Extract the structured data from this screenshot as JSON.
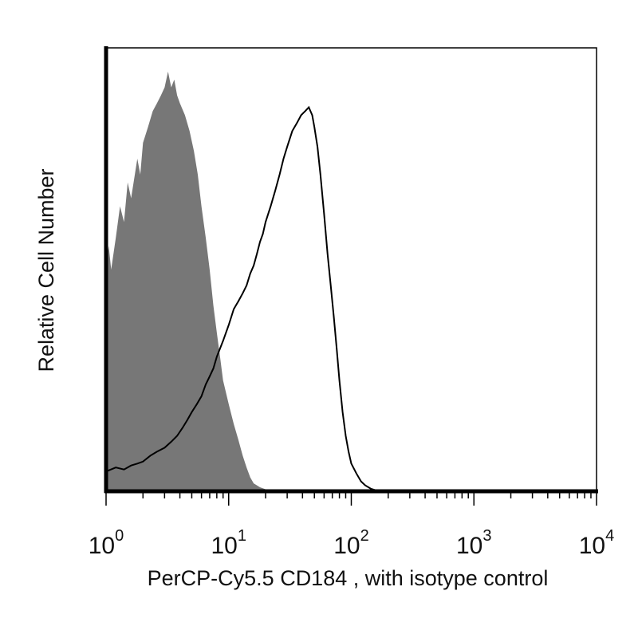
{
  "chart_data": {
    "type": "histogram",
    "xlabel": "PerCP-Cy5.5 CD184 , with isotype control",
    "ylabel": "Relative Cell Number",
    "x_scale": "log",
    "xlim": [
      1,
      10000
    ],
    "ylim": [
      0,
      1.12
    ],
    "x_ticks": [
      {
        "base": "10",
        "exp": "0",
        "value": 1
      },
      {
        "base": "10",
        "exp": "1",
        "value": 10
      },
      {
        "base": "10",
        "exp": "2",
        "value": 100
      },
      {
        "base": "10",
        "exp": "3",
        "value": 1000
      },
      {
        "base": "10",
        "exp": "4",
        "value": 10000
      }
    ],
    "grid": false,
    "legend": "none",
    "series": [
      {
        "style": "filled",
        "color": "#777777",
        "points": [
          [
            1.0,
            0.57
          ],
          [
            1.05,
            0.62
          ],
          [
            1.1,
            0.56
          ],
          [
            1.2,
            0.64
          ],
          [
            1.3,
            0.72
          ],
          [
            1.4,
            0.68
          ],
          [
            1.5,
            0.78
          ],
          [
            1.6,
            0.74
          ],
          [
            1.8,
            0.84
          ],
          [
            1.9,
            0.8
          ],
          [
            2.0,
            0.88
          ],
          [
            2.2,
            0.92
          ],
          [
            2.4,
            0.96
          ],
          [
            2.6,
            0.98
          ],
          [
            2.8,
            1.0
          ],
          [
            3.0,
            1.02
          ],
          [
            3.2,
            1.06
          ],
          [
            3.4,
            1.02
          ],
          [
            3.6,
            1.04
          ],
          [
            3.8,
            1.0
          ],
          [
            4.0,
            0.98
          ],
          [
            4.4,
            0.95
          ],
          [
            4.8,
            0.91
          ],
          [
            5.2,
            0.86
          ],
          [
            5.6,
            0.8
          ],
          [
            6.0,
            0.72
          ],
          [
            6.5,
            0.64
          ],
          [
            7.0,
            0.56
          ],
          [
            7.5,
            0.47
          ],
          [
            8.0,
            0.4
          ],
          [
            8.5,
            0.34
          ],
          [
            9.0,
            0.28
          ],
          [
            10.0,
            0.22
          ],
          [
            11.0,
            0.17
          ],
          [
            12.0,
            0.13
          ],
          [
            13.0,
            0.09
          ],
          [
            14.0,
            0.06
          ],
          [
            15.0,
            0.035
          ],
          [
            16.0,
            0.02
          ],
          [
            18.0,
            0.01
          ],
          [
            20.0,
            0.005
          ],
          [
            25.0,
            0.0
          ]
        ]
      },
      {
        "style": "outline",
        "color": "#000000",
        "points": [
          [
            1.0,
            0.05
          ],
          [
            1.2,
            0.06
          ],
          [
            1.4,
            0.055
          ],
          [
            1.6,
            0.065
          ],
          [
            1.8,
            0.07
          ],
          [
            2.0,
            0.075
          ],
          [
            2.3,
            0.09
          ],
          [
            2.6,
            0.1
          ],
          [
            3.0,
            0.11
          ],
          [
            3.4,
            0.125
          ],
          [
            3.8,
            0.14
          ],
          [
            4.2,
            0.16
          ],
          [
            4.6,
            0.18
          ],
          [
            5.0,
            0.2
          ],
          [
            5.5,
            0.22
          ],
          [
            6.0,
            0.24
          ],
          [
            6.5,
            0.27
          ],
          [
            7.0,
            0.29
          ],
          [
            7.5,
            0.31
          ],
          [
            8.0,
            0.34
          ],
          [
            9.0,
            0.38
          ],
          [
            10.0,
            0.42
          ],
          [
            11.0,
            0.46
          ],
          [
            12.0,
            0.48
          ],
          [
            13.0,
            0.5
          ],
          [
            14.0,
            0.52
          ],
          [
            15.0,
            0.55
          ],
          [
            16.0,
            0.57
          ],
          [
            17.0,
            0.6
          ],
          [
            18.0,
            0.63
          ],
          [
            19.0,
            0.65
          ],
          [
            20.0,
            0.68
          ],
          [
            22.0,
            0.72
          ],
          [
            24.0,
            0.76
          ],
          [
            26.0,
            0.8
          ],
          [
            28.0,
            0.84
          ],
          [
            30.0,
            0.87
          ],
          [
            33.0,
            0.91
          ],
          [
            36.0,
            0.93
          ],
          [
            39.0,
            0.95
          ],
          [
            42.0,
            0.96
          ],
          [
            45.0,
            0.97
          ],
          [
            48.0,
            0.95
          ],
          [
            50.0,
            0.92
          ],
          [
            53.0,
            0.87
          ],
          [
            56.0,
            0.8
          ],
          [
            60.0,
            0.7
          ],
          [
            64.0,
            0.6
          ],
          [
            68.0,
            0.52
          ],
          [
            72.0,
            0.44
          ],
          [
            76.0,
            0.36
          ],
          [
            80.0,
            0.28
          ],
          [
            85.0,
            0.2
          ],
          [
            90.0,
            0.14
          ],
          [
            95.0,
            0.1
          ],
          [
            100.0,
            0.07
          ],
          [
            110.0,
            0.045
          ],
          [
            120.0,
            0.025
          ],
          [
            130.0,
            0.015
          ],
          [
            145.0,
            0.006
          ],
          [
            160.0,
            0.002
          ],
          [
            170.0,
            0.0
          ]
        ]
      }
    ]
  }
}
